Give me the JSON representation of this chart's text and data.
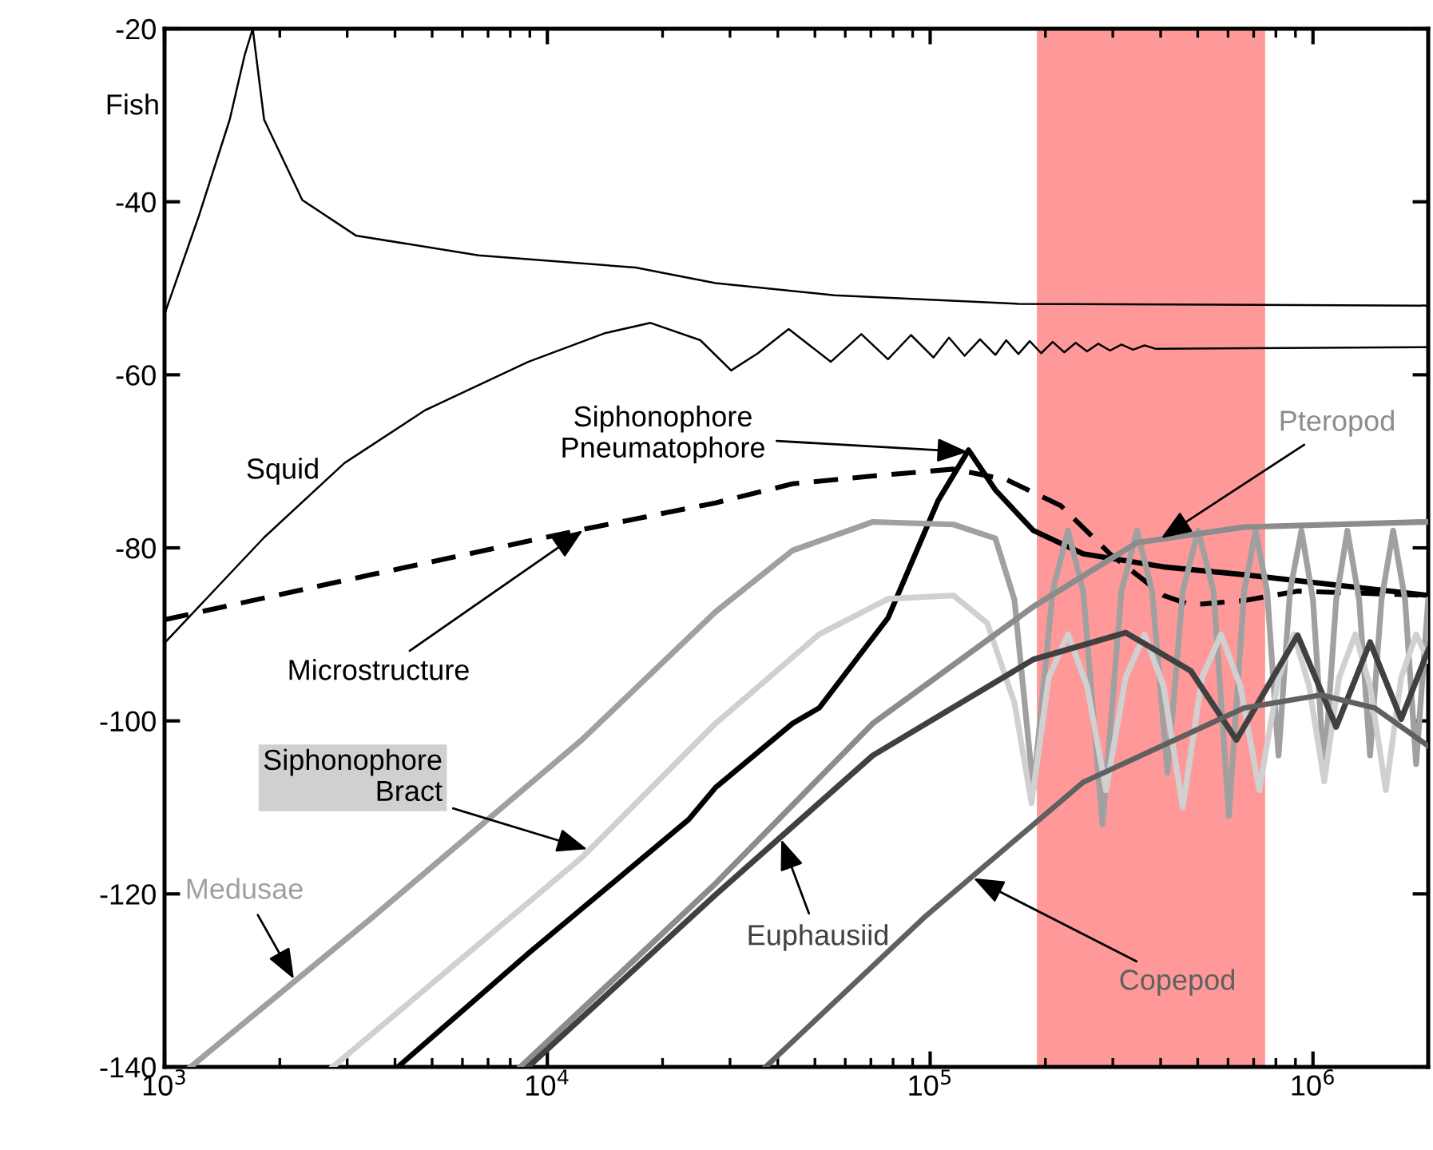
{
  "chart_data": {
    "type": "line",
    "log": "x",
    "line_style": "solid",
    "xlim": [
      1000,
      2000000
    ],
    "ylim": [
      -140,
      -20
    ],
    "xticks": [
      {
        "value": 1000,
        "label": "10$^{3}$"
      },
      {
        "value": 10000,
        "label": "10$^{4}$"
      },
      {
        "value": 100000,
        "label": "10$^{5}$"
      },
      {
        "value": 1000000,
        "label": "10$^{6}$"
      }
    ],
    "yticks": [
      -140,
      -120,
      -100,
      -80,
      -60,
      -40,
      -20
    ],
    "bands": [
      {
        "axis": "x",
        "from": 190000,
        "to": 750000,
        "color": "#ff9999"
      }
    ],
    "series": [
      {
        "name": "Fish",
        "color": "#000000",
        "x": [
          1000,
          1230,
          1480,
          1620,
          1700,
          1820,
          2290,
          3160,
          6610,
          17000,
          27500,
          56200,
          170000,
          2000000
        ],
        "values": [
          -53,
          -41.6,
          -30.5,
          -23,
          -20,
          -30.5,
          -39.8,
          -43.9,
          -46.2,
          -47.6,
          -49.4,
          -50.8,
          -51.8,
          -52
        ]
      },
      {
        "name": "Squid",
        "color": "#000000",
        "x": [
          1000,
          1820,
          2950,
          4790,
          8910,
          14100,
          18600,
          25100,
          30200,
          35500,
          42700,
          55000,
          66100,
          77600,
          89100,
          102000,
          112000,
          123000,
          135000,
          148000,
          158000,
          170000,
          182000,
          195000,
          209000,
          224000,
          240000,
          257000,
          275000,
          295000,
          316000,
          339000,
          363000,
          389000,
          2000000
        ],
        "values": [
          -91,
          -78.8,
          -70.2,
          -64.1,
          -58.5,
          -55.2,
          -54,
          -56,
          -59.5,
          -57.5,
          -54.7,
          -58.5,
          -55.3,
          -58.2,
          -55.4,
          -58,
          -55.7,
          -57.8,
          -55.9,
          -57.7,
          -56,
          -57.6,
          -56.1,
          -57.5,
          -56.2,
          -57.4,
          -56.3,
          -57.3,
          -56.4,
          -57.2,
          -56.5,
          -57.1,
          -56.6,
          -57,
          -56.8
        ]
      },
      {
        "name": "Microstructure",
        "color": "#000000",
        "line_style": "dashed",
        "x": [
          1000,
          3470,
          12300,
          27500,
          43700,
          70800,
          115000,
          158000,
          219000,
          295000,
          407000,
          479000,
          661000,
          912000,
          2000000
        ],
        "values": [
          -88.3,
          -83.1,
          -77.9,
          -74.8,
          -72.6,
          -71.7,
          -70.9,
          -72.1,
          -75.1,
          -80.7,
          -85.5,
          -86.6,
          -86.1,
          -85,
          -85.5
        ]
      },
      {
        "name": "Siphonophore\nPneumatophore",
        "color": "#000000",
        "x": [
          4070,
          8910,
          23400,
          27500,
          43700,
          51300,
          77600,
          105000,
          126000,
          148000,
          186000,
          251000,
          407000,
          661000,
          2000000
        ],
        "values": [
          -140,
          -126.9,
          -111.4,
          -107.7,
          -100.3,
          -98.5,
          -88.1,
          -74.5,
          -68.7,
          -73.3,
          -78,
          -80.7,
          -82.2,
          -83.1,
          -85.5
        ]
      },
      {
        "name": "Medusae",
        "color": "#a0a0a0",
        "x": [
          1170,
          3470,
          12300,
          27500,
          43700,
          70800,
          115000,
          148000,
          166000,
          186000,
          209000,
          229000,
          251000,
          282000,
          316000,
          347000,
          380000,
          417000,
          457000,
          501000,
          550000,
          603000,
          661000,
          708000,
          759000,
          813000,
          871000,
          933000,
          1000000,
          1070000,
          1150000,
          1230000,
          1320000,
          1410000,
          1510000,
          1620000,
          1740000,
          1860000,
          2000000
        ],
        "values": [
          -140,
          -122.8,
          -102.2,
          -87.4,
          -80.3,
          -77,
          -77.3,
          -78.9,
          -86,
          -108,
          -85,
          -78,
          -85,
          -112,
          -85,
          -78,
          -85,
          -106,
          -85,
          -78,
          -85,
          -111,
          -85,
          -78,
          -85,
          -104,
          -85,
          -78,
          -86,
          -106,
          -86,
          -78,
          -86,
          -104,
          -86,
          -78,
          -86,
          -105,
          -86
        ]
      },
      {
        "name": "Siphonophore\nBract",
        "color": "#d0d0d0",
        "x": [
          2750,
          12300,
          27500,
          51300,
          77600,
          115000,
          141000,
          166000,
          184000,
          204000,
          229000,
          257000,
          288000,
          324000,
          363000,
          407000,
          457000,
          513000,
          575000,
          646000,
          724000,
          813000,
          891000,
          977000,
          1070000,
          1170000,
          1290000,
          1410000,
          1550000,
          1700000,
          1860000,
          2000000
        ],
        "values": [
          -140,
          -115.8,
          -100.3,
          -90,
          -85.9,
          -85.5,
          -88.7,
          -97.9,
          -109.5,
          -95,
          -90,
          -96,
          -108,
          -95,
          -90,
          -96,
          -110,
          -95,
          -90,
          -96,
          -108,
          -95,
          -90,
          -96,
          -107,
          -95,
          -90,
          -96,
          -108,
          -95,
          -90,
          -93
        ]
      },
      {
        "name": "Pteropod",
        "color": "#8c8c8c",
        "x": [
          8510,
          27500,
          70800,
          186000,
          347000,
          661000,
          2000000
        ],
        "values": [
          -140,
          -118.8,
          -100.3,
          -86.8,
          -79.4,
          -77.6,
          -77
        ]
      },
      {
        "name": "Euphausiid",
        "color": "#404040",
        "x": [
          8910,
          27500,
          70800,
          186000,
          324000,
          479000,
          631000,
          912000,
          1150000,
          1410000,
          1700000,
          2000000
        ],
        "values": [
          -140,
          -120.1,
          -104,
          -92.9,
          -89.8,
          -94.2,
          -102.2,
          -90.1,
          -100.7,
          -90.9,
          -99.8,
          -91.8
        ]
      },
      {
        "name": "Copepod",
        "color": "#606060",
        "x": [
          37200,
          97700,
          251000,
          661000,
          1050000,
          1450000,
          2000000
        ],
        "values": [
          -140,
          -122.5,
          -107.1,
          -98.5,
          -97,
          -98.5,
          -102.9
        ]
      }
    ]
  }
}
